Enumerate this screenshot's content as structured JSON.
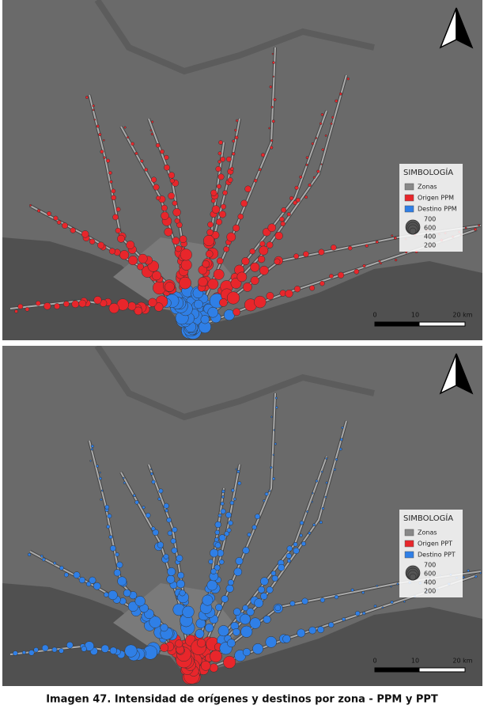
{
  "maps": [
    {
      "legend": {
        "title": "SIMBOLOGÍA",
        "items": [
          "Zonas",
          "Origen PPM",
          "Destino PPM"
        ],
        "sizes": [
          700,
          600,
          400,
          200
        ]
      },
      "scale": [
        "0",
        "10",
        "20 km"
      ]
    },
    {
      "legend": {
        "title": "SIMBOLOGÍA",
        "items": [
          "Zonas",
          "Origen PPT",
          "Destino PPT"
        ],
        "sizes": [
          700,
          600,
          400,
          200
        ]
      },
      "scale": [
        "0",
        "10",
        "20 km"
      ]
    }
  ],
  "caption": "Imagen 47. Intensidad de orígenes y destinos por zona - PPM y PPT"
}
